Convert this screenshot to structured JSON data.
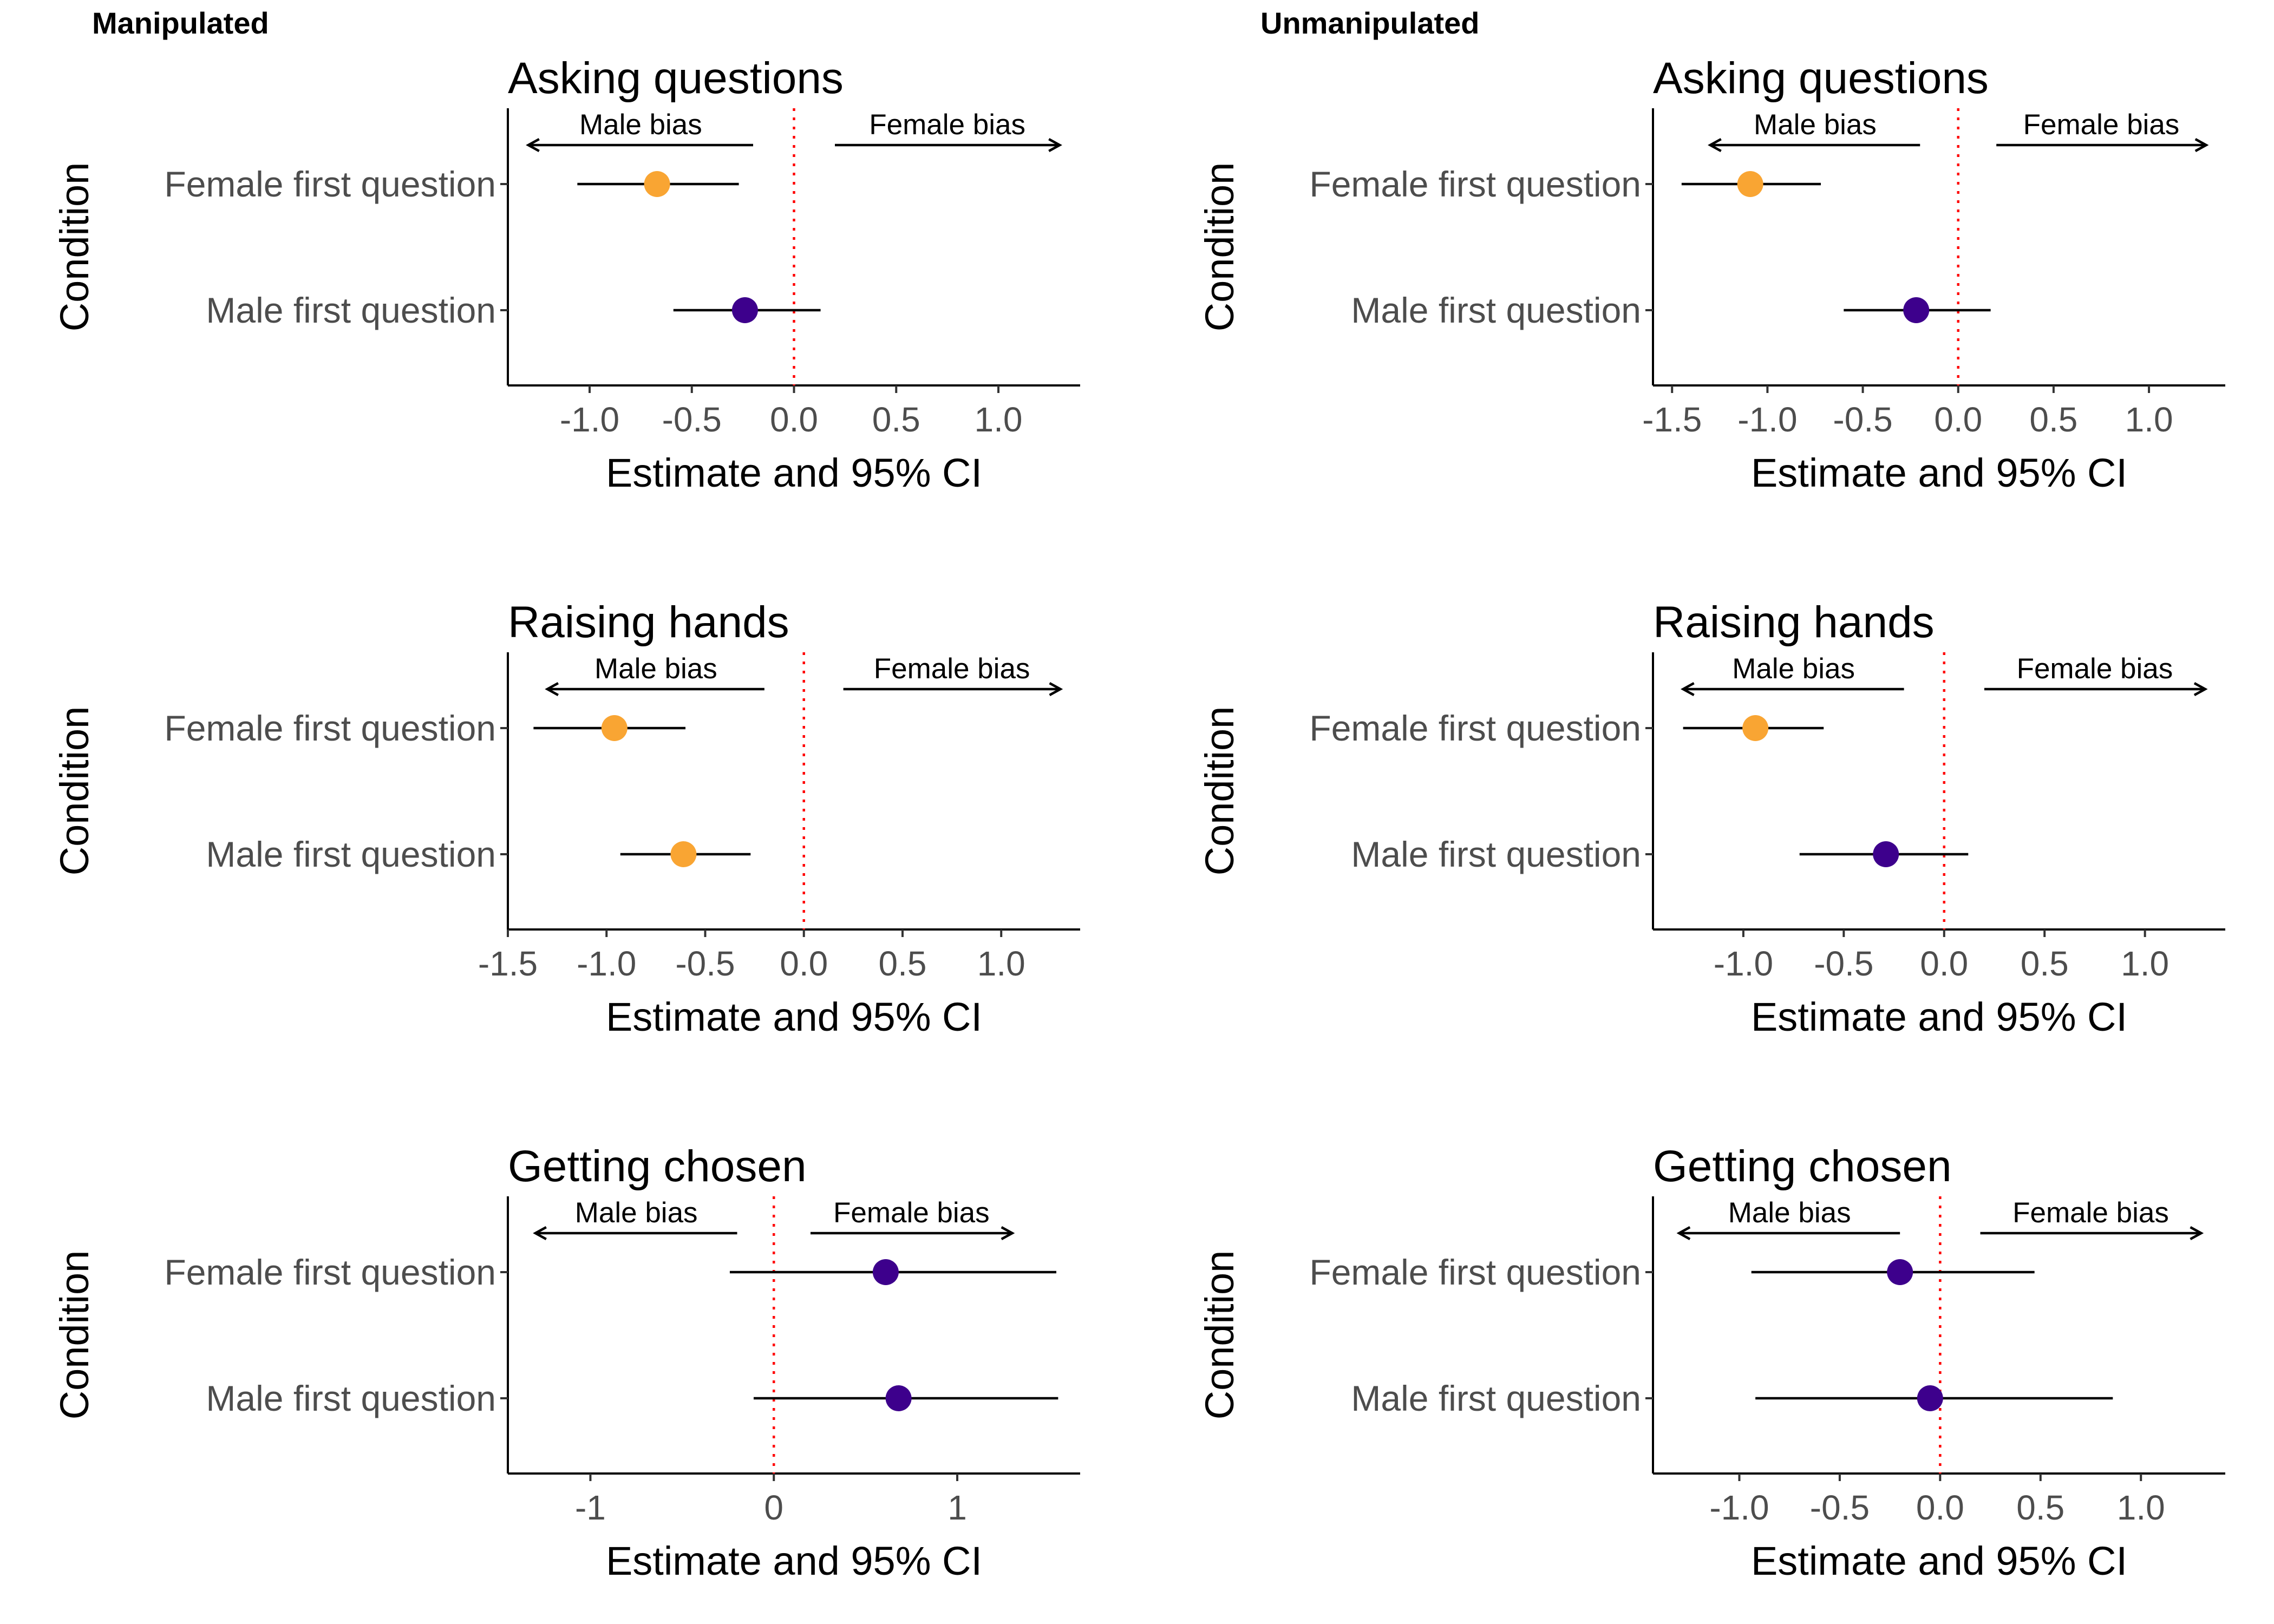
{
  "figure": {
    "columns": [
      {
        "key": "manipulated",
        "label": "Manipulated"
      },
      {
        "key": "unmanipulated",
        "label": "Unmanipulated"
      }
    ]
  },
  "annotations": {
    "left": "Male bias",
    "right": "Female bias"
  },
  "colors": {
    "orange": "#f9a533",
    "purple": "#3d008c",
    "reference_line": "#ff0000"
  },
  "chart_data": [
    {
      "type": "scatter",
      "column": "Manipulated",
      "title": "Asking questions",
      "xlabel": "Estimate and 95% CI",
      "ylabel": "Condition",
      "xlim": [
        -1.4,
        1.4
      ],
      "xticks": [
        -1.0,
        -0.5,
        0.0,
        0.5,
        1.0
      ],
      "tick_labels": [
        "-1.0",
        "-0.5",
        "0.0",
        "0.5",
        "1.0"
      ],
      "reference_line": 0,
      "grid": false,
      "annotation_arrows": [
        {
          "label": "Male bias",
          "from": -0.2,
          "to": -1.3
        },
        {
          "label": "Female bias",
          "from": 0.2,
          "to": 1.3
        }
      ],
      "points": [
        {
          "condition": "Female first question",
          "estimate": -0.67,
          "ci": [
            -1.06,
            -0.27
          ],
          "color": "orange"
        },
        {
          "condition": "Male first question",
          "estimate": -0.24,
          "ci": [
            -0.59,
            0.13
          ],
          "color": "purple"
        }
      ]
    },
    {
      "type": "scatter",
      "column": "Unmanipulated",
      "title": "Asking questions",
      "xlabel": "Estimate and 95% CI",
      "ylabel": "Condition",
      "xlim": [
        -1.6,
        1.4
      ],
      "xticks": [
        -1.5,
        -1.0,
        -0.5,
        0.0,
        0.5,
        1.0
      ],
      "tick_labels": [
        "-1.5",
        "-1.0",
        "-0.5",
        "0.0",
        "0.5",
        "1.0"
      ],
      "reference_line": 0,
      "grid": false,
      "annotation_arrows": [
        {
          "label": "Male bias",
          "from": -0.2,
          "to": -1.3
        },
        {
          "label": "Female bias",
          "from": 0.2,
          "to": 1.3
        }
      ],
      "points": [
        {
          "condition": "Female first question",
          "estimate": -1.09,
          "ci": [
            -1.45,
            -0.72
          ],
          "color": "orange"
        },
        {
          "condition": "Male first question",
          "estimate": -0.22,
          "ci": [
            -0.6,
            0.17
          ],
          "color": "purple"
        }
      ]
    },
    {
      "type": "scatter",
      "column": "Manipulated",
      "title": "Raising hands",
      "xlabel": "Estimate and 95% CI",
      "ylabel": "Condition",
      "xlim": [
        -1.5,
        1.4
      ],
      "xticks": [
        -1.5,
        -1.0,
        -0.5,
        0.0,
        0.5,
        1.0
      ],
      "tick_labels": [
        "-1.5",
        "-1.0",
        "-0.5",
        "0.0",
        "0.5",
        "1.0"
      ],
      "reference_line": 0,
      "grid": false,
      "annotation_arrows": [
        {
          "label": "Male bias",
          "from": -0.2,
          "to": -1.3
        },
        {
          "label": "Female bias",
          "from": 0.2,
          "to": 1.3
        }
      ],
      "points": [
        {
          "condition": "Female first question",
          "estimate": -0.96,
          "ci": [
            -1.37,
            -0.6
          ],
          "color": "orange"
        },
        {
          "condition": "Male first question",
          "estimate": -0.61,
          "ci": [
            -0.93,
            -0.27
          ],
          "color": "orange"
        }
      ]
    },
    {
      "type": "scatter",
      "column": "Unmanipulated",
      "title": "Raising hands",
      "xlabel": "Estimate and 95% CI",
      "ylabel": "Condition",
      "xlim": [
        -1.45,
        1.4
      ],
      "xticks": [
        -1.0,
        -0.5,
        0.0,
        0.5,
        1.0
      ],
      "tick_labels": [
        "-1.0",
        "-0.5",
        "0.0",
        "0.5",
        "1.0"
      ],
      "reference_line": 0,
      "grid": false,
      "annotation_arrows": [
        {
          "label": "Male bias",
          "from": -0.2,
          "to": -1.3
        },
        {
          "label": "Female bias",
          "from": 0.2,
          "to": 1.3
        }
      ],
      "points": [
        {
          "condition": "Female first question",
          "estimate": -0.94,
          "ci": [
            -1.3,
            -0.6
          ],
          "color": "orange"
        },
        {
          "condition": "Male first question",
          "estimate": -0.29,
          "ci": [
            -0.72,
            0.12
          ],
          "color": "purple"
        }
      ]
    },
    {
      "type": "scatter",
      "column": "Manipulated",
      "title": "Getting chosen",
      "xlabel": "Estimate and 95% CI",
      "ylabel": "Condition",
      "xlim": [
        -1.45,
        1.67
      ],
      "xticks": [
        -1,
        0,
        1
      ],
      "tick_labels": [
        "-1",
        "0",
        "1"
      ],
      "reference_line": 0,
      "grid": false,
      "annotation_arrows": [
        {
          "label": "Male bias",
          "from": -0.2,
          "to": -1.3
        },
        {
          "label": "Female bias",
          "from": 0.2,
          "to": 1.3
        }
      ],
      "points": [
        {
          "condition": "Female first question",
          "estimate": 0.61,
          "ci": [
            -0.24,
            1.54
          ],
          "color": "purple"
        },
        {
          "condition": "Male first question",
          "estimate": 0.68,
          "ci": [
            -0.11,
            1.55
          ],
          "color": "purple"
        }
      ]
    },
    {
      "type": "scatter",
      "column": "Unmanipulated",
      "title": "Getting chosen",
      "xlabel": "Estimate and 95% CI",
      "ylabel": "Condition",
      "xlim": [
        -1.43,
        1.42
      ],
      "xticks": [
        -1.0,
        -0.5,
        0.0,
        0.5,
        1.0
      ],
      "tick_labels": [
        "-1.0",
        "-0.5",
        "0.0",
        "0.5",
        "1.0"
      ],
      "reference_line": 0,
      "grid": false,
      "annotation_arrows": [
        {
          "label": "Male bias",
          "from": -0.2,
          "to": -1.3
        },
        {
          "label": "Female bias",
          "from": 0.2,
          "to": 1.3
        }
      ],
      "points": [
        {
          "condition": "Female first question",
          "estimate": -0.2,
          "ci": [
            -0.94,
            0.47
          ],
          "color": "purple"
        },
        {
          "condition": "Male first question",
          "estimate": -0.05,
          "ci": [
            -0.92,
            0.86
          ],
          "color": "purple"
        }
      ]
    }
  ]
}
